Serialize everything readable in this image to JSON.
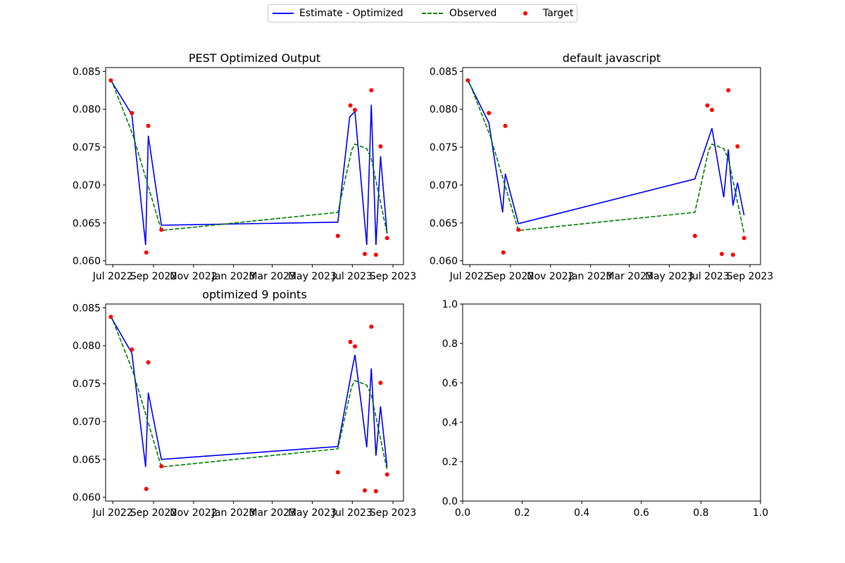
{
  "legend": {
    "placement": "top-center",
    "entries": [
      {
        "label": "Estimate - Optimized",
        "style": "solid-line",
        "color": "#0000ff"
      },
      {
        "label": "Observed",
        "style": "dashed-line",
        "color": "#008000"
      },
      {
        "label": "Target",
        "style": "marker",
        "color": "#ff0000"
      }
    ]
  },
  "colors": {
    "estimate": "#0000ff",
    "observed": "#008000",
    "target": "#ff0000"
  },
  "chart_data": [
    {
      "type": "line",
      "title": "PEST Optimized Output",
      "xlabel": "",
      "ylabel": "",
      "x_ticks": [
        "Jul 2022",
        "Sep 2022",
        "Nov 2022",
        "Jan 2023",
        "Mar 2023",
        "May 2023",
        "Jul 2023",
        "Sep 2023"
      ],
      "y_ticks": [
        "0.060",
        "0.065",
        "0.070",
        "0.075",
        "0.080",
        "0.085"
      ],
      "xlim": [
        "2022-06-20",
        "2023-09-17"
      ],
      "ylim": [
        0.0595,
        0.0855
      ],
      "grid": false,
      "series": [
        {
          "name": "Estimate - Optimized",
          "style": "solid",
          "x": [
            "2022-06-28",
            "2022-07-30",
            "2022-08-20",
            "2022-08-24",
            "2022-09-13",
            "2023-06-09",
            "2023-06-27",
            "2023-07-05",
            "2023-07-23",
            "2023-07-30",
            "2023-08-06",
            "2023-08-13",
            "2023-08-23"
          ],
          "y": [
            0.0838,
            0.0793,
            0.0621,
            0.0765,
            0.0647,
            0.0651,
            0.079,
            0.0797,
            0.0621,
            0.0806,
            0.0621,
            0.0738,
            0.0636
          ]
        },
        {
          "name": "Observed",
          "style": "dashed",
          "x": [
            "2022-06-28",
            "2022-08-01",
            "2022-09-13",
            "2023-06-09",
            "2023-06-30",
            "2023-07-05",
            "2023-07-23",
            "2023-07-30",
            "2023-08-23"
          ],
          "y": [
            0.084,
            0.0765,
            0.064,
            0.0664,
            0.0746,
            0.0754,
            0.0748,
            0.0735,
            0.0636
          ]
        },
        {
          "name": "Target",
          "style": "marker",
          "x": [
            "2022-06-28",
            "2022-07-30",
            "2022-08-21",
            "2022-08-24",
            "2022-09-13",
            "2023-06-09",
            "2023-06-28",
            "2023-07-05",
            "2023-07-20",
            "2023-07-30",
            "2023-08-06",
            "2023-08-13",
            "2023-08-23"
          ],
          "y": [
            0.0838,
            0.0795,
            0.0611,
            0.0778,
            0.0641,
            0.0633,
            0.0805,
            0.0799,
            0.0609,
            0.0825,
            0.0608,
            0.0751,
            0.063
          ]
        }
      ]
    },
    {
      "type": "line",
      "title": "default javascript",
      "xlabel": "",
      "ylabel": "",
      "x_ticks": [
        "Jul 2022",
        "Sep 2022",
        "Nov 2022",
        "Jan 2023",
        "Mar 2023",
        "May 2023",
        "Jul 2023",
        "Sep 2023"
      ],
      "y_ticks": [
        "0.060",
        "0.065",
        "0.070",
        "0.075",
        "0.080",
        "0.085"
      ],
      "xlim": [
        "2022-06-20",
        "2023-09-17"
      ],
      "ylim": [
        0.0595,
        0.0855
      ],
      "grid": false,
      "series": [
        {
          "name": "Estimate - Optimized",
          "style": "solid",
          "x": [
            "2022-06-28",
            "2022-07-30",
            "2022-08-20",
            "2022-08-24",
            "2022-09-13",
            "2023-06-09",
            "2023-07-05",
            "2023-07-23",
            "2023-07-30",
            "2023-08-06",
            "2023-08-13",
            "2023-08-23"
          ],
          "y": [
            0.0838,
            0.0782,
            0.0664,
            0.0715,
            0.0649,
            0.0708,
            0.0775,
            0.0684,
            0.0747,
            0.0673,
            0.0703,
            0.066
          ]
        },
        {
          "name": "Observed",
          "style": "dashed",
          "x": [
            "2022-06-28",
            "2022-08-01",
            "2022-09-13",
            "2023-06-09",
            "2023-06-30",
            "2023-07-05",
            "2023-07-23",
            "2023-07-30",
            "2023-08-23"
          ],
          "y": [
            0.084,
            0.0765,
            0.064,
            0.0664,
            0.0746,
            0.0754,
            0.0748,
            0.0735,
            0.0636
          ]
        },
        {
          "name": "Target",
          "style": "marker",
          "x": [
            "2022-06-28",
            "2022-07-30",
            "2022-08-21",
            "2022-08-24",
            "2022-09-13",
            "2023-06-09",
            "2023-06-28",
            "2023-07-05",
            "2023-07-20",
            "2023-07-30",
            "2023-08-06",
            "2023-08-13",
            "2023-08-23"
          ],
          "y": [
            0.0838,
            0.0795,
            0.0611,
            0.0778,
            0.0641,
            0.0633,
            0.0805,
            0.0799,
            0.0609,
            0.0825,
            0.0608,
            0.0751,
            0.063
          ]
        }
      ]
    },
    {
      "type": "line",
      "title": "optimized 9 points",
      "xlabel": "",
      "ylabel": "",
      "x_ticks": [
        "Jul 2022",
        "Sep 2022",
        "Nov 2022",
        "Jan 2023",
        "Mar 2023",
        "May 2023",
        "Jul 2023",
        "Sep 2023"
      ],
      "y_ticks": [
        "0.060",
        "0.065",
        "0.070",
        "0.075",
        "0.080",
        "0.085"
      ],
      "xlim": [
        "2022-06-20",
        "2023-09-17"
      ],
      "ylim": [
        0.0595,
        0.0855
      ],
      "grid": false,
      "series": [
        {
          "name": "Estimate - Optimized",
          "style": "solid",
          "x": [
            "2022-06-28",
            "2022-07-30",
            "2022-08-20",
            "2022-08-24",
            "2022-09-13",
            "2023-06-09",
            "2023-06-30",
            "2023-07-05",
            "2023-07-23",
            "2023-07-30",
            "2023-08-06",
            "2023-08-13",
            "2023-08-23"
          ],
          "y": [
            0.0838,
            0.079,
            0.064,
            0.0738,
            0.065,
            0.0667,
            0.0766,
            0.0788,
            0.0666,
            0.077,
            0.0655,
            0.072,
            0.064
          ]
        },
        {
          "name": "Observed",
          "style": "dashed",
          "x": [
            "2022-06-28",
            "2022-08-01",
            "2022-09-13",
            "2023-06-09",
            "2023-06-30",
            "2023-07-05",
            "2023-07-23",
            "2023-07-30",
            "2023-08-23"
          ],
          "y": [
            0.084,
            0.0765,
            0.064,
            0.0664,
            0.0746,
            0.0754,
            0.0748,
            0.0735,
            0.0636
          ]
        },
        {
          "name": "Target",
          "style": "marker",
          "x": [
            "2022-06-28",
            "2022-07-30",
            "2022-08-21",
            "2022-08-24",
            "2022-09-13",
            "2023-06-09",
            "2023-06-28",
            "2023-07-05",
            "2023-07-20",
            "2023-07-30",
            "2023-08-06",
            "2023-08-13",
            "2023-08-23"
          ],
          "y": [
            0.0838,
            0.0795,
            0.0611,
            0.0778,
            0.0641,
            0.0633,
            0.0805,
            0.0799,
            0.0609,
            0.0825,
            0.0608,
            0.0751,
            0.063
          ]
        }
      ]
    },
    {
      "type": "line",
      "title": "",
      "xlabel": "",
      "ylabel": "",
      "x_ticks": [
        "0.0",
        "0.2",
        "0.4",
        "0.6",
        "0.8",
        "1.0"
      ],
      "y_ticks": [
        "0.0",
        "0.2",
        "0.4",
        "0.6",
        "0.8",
        "1.0"
      ],
      "xlim": [
        0,
        1
      ],
      "ylim": [
        0,
        1
      ],
      "grid": false,
      "series": []
    }
  ]
}
